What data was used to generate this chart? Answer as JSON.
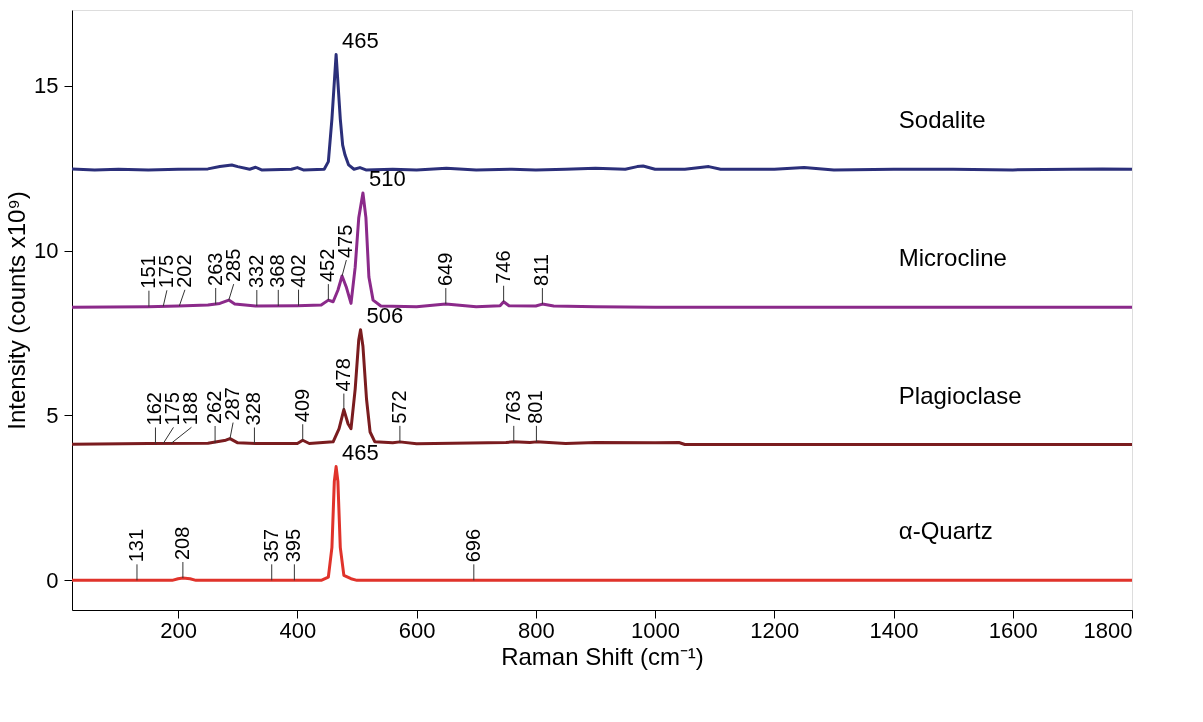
{
  "chart_data": {
    "type": "line",
    "xlabel": "Raman Shift (cm⁻¹)",
    "ylabel": "Intensity (counts x10⁹)",
    "xlim": [
      22,
      1800
    ],
    "ylim": [
      -0.9,
      17.3
    ],
    "xticks": [
      200,
      400,
      600,
      800,
      1000,
      1200,
      1400,
      1600,
      1800
    ],
    "yticks": [
      0,
      5,
      10,
      15
    ],
    "grid": false,
    "legend": false,
    "line_style": "solid",
    "marker": "none",
    "series": [
      {
        "name": "Sodalite",
        "color": "#2b2f7a",
        "x": [
          22,
          60,
          100,
          150,
          200,
          250,
          270,
          290,
          300,
          320,
          330,
          340,
          390,
          400,
          410,
          445,
          452,
          458,
          465,
          472,
          476,
          480,
          486,
          495,
          505,
          515,
          560,
          600,
          650,
          700,
          760,
          800,
          850,
          900,
          950,
          970,
          980,
          1000,
          1050,
          1090,
          1110,
          1200,
          1250,
          1300,
          1400,
          1500,
          1600,
          1700,
          1750,
          1800
        ],
        "values": [
          12.48,
          12.45,
          12.47,
          12.45,
          12.47,
          12.48,
          12.55,
          12.6,
          12.55,
          12.47,
          12.53,
          12.45,
          12.47,
          12.52,
          12.45,
          12.47,
          12.7,
          14.0,
          15.95,
          14.0,
          13.2,
          12.9,
          12.6,
          12.47,
          12.52,
          12.45,
          12.47,
          12.45,
          12.5,
          12.45,
          12.47,
          12.45,
          12.47,
          12.5,
          12.47,
          12.55,
          12.57,
          12.47,
          12.47,
          12.55,
          12.47,
          12.47,
          12.52,
          12.45,
          12.47,
          12.47,
          12.45,
          12.47,
          12.48,
          12.47
        ]
      },
      {
        "name": "Microcline",
        "color": "#8b2a8a",
        "x": [
          22,
          150,
          200,
          250,
          270,
          285,
          295,
          330,
          400,
          440,
          452,
          460,
          468,
          475,
          482,
          490,
          497,
          503,
          510,
          515,
          520,
          527,
          540,
          600,
          649,
          700,
          740,
          746,
          755,
          800,
          811,
          830,
          900,
          1000,
          1200,
          1800
        ],
        "values": [
          8.28,
          8.3,
          8.32,
          8.35,
          8.4,
          8.5,
          8.38,
          8.32,
          8.33,
          8.35,
          8.5,
          8.45,
          8.8,
          9.23,
          8.9,
          8.4,
          9.5,
          11.0,
          11.75,
          11.0,
          9.2,
          8.5,
          8.32,
          8.3,
          8.38,
          8.3,
          8.33,
          8.45,
          8.33,
          8.32,
          8.38,
          8.32,
          8.3,
          8.28,
          8.28,
          8.28
        ]
      },
      {
        "name": "Plagioclase",
        "color": "#7a1c1f",
        "x": [
          22,
          150,
          250,
          280,
          287,
          300,
          330,
          400,
          409,
          420,
          460,
          470,
          478,
          485,
          490,
          497,
          503,
          506,
          510,
          516,
          522,
          530,
          560,
          572,
          600,
          750,
          763,
          790,
          801,
          850,
          900,
          1000,
          1040,
          1050,
          1800
        ],
        "values": [
          4.13,
          4.15,
          4.16,
          4.25,
          4.3,
          4.17,
          4.15,
          4.15,
          4.25,
          4.15,
          4.2,
          4.6,
          5.18,
          4.75,
          4.6,
          5.8,
          7.3,
          7.6,
          7.1,
          5.5,
          4.5,
          4.2,
          4.17,
          4.2,
          4.14,
          4.18,
          4.2,
          4.18,
          4.2,
          4.15,
          4.18,
          4.17,
          4.18,
          4.12,
          4.12
        ]
      },
      {
        "name": "α-Quartz",
        "color": "#e0332b",
        "x": [
          22,
          190,
          200,
          208,
          220,
          230,
          440,
          452,
          458,
          462,
          465,
          468,
          472,
          478,
          490,
          500,
          1800
        ],
        "values": [
          0,
          0,
          0.05,
          0.07,
          0.05,
          0,
          0,
          0.1,
          1.0,
          3.0,
          3.45,
          3.0,
          1.0,
          0.15,
          0.05,
          0,
          0
        ]
      }
    ],
    "annotations": [
      {
        "text": "465",
        "x": 465,
        "y": 15.95
      },
      {
        "text": "151",
        "x": 151,
        "y": 8.3
      },
      {
        "text": "175",
        "x": 175,
        "y": 8.31
      },
      {
        "text": "202",
        "x": 202,
        "y": 8.32
      },
      {
        "text": "263",
        "x": 263,
        "y": 8.37
      },
      {
        "text": "285",
        "x": 285,
        "y": 8.5
      },
      {
        "text": "332",
        "x": 332,
        "y": 8.32
      },
      {
        "text": "368",
        "x": 368,
        "y": 8.32
      },
      {
        "text": "402",
        "x": 402,
        "y": 8.33
      },
      {
        "text": "452",
        "x": 452,
        "y": 8.5
      },
      {
        "text": "475",
        "x": 475,
        "y": 9.23
      },
      {
        "text": "510",
        "x": 510,
        "y": 11.75
      },
      {
        "text": "649",
        "x": 649,
        "y": 8.38
      },
      {
        "text": "746",
        "x": 746,
        "y": 8.45
      },
      {
        "text": "811",
        "x": 811,
        "y": 8.38
      },
      {
        "text": "162",
        "x": 162,
        "y": 4.15
      },
      {
        "text": "175",
        "x": 175,
        "y": 4.15
      },
      {
        "text": "188",
        "x": 188,
        "y": 4.15
      },
      {
        "text": "262",
        "x": 262,
        "y": 4.16
      },
      {
        "text": "287",
        "x": 287,
        "y": 4.3
      },
      {
        "text": "328",
        "x": 328,
        "y": 4.15
      },
      {
        "text": "409",
        "x": 409,
        "y": 4.25
      },
      {
        "text": "478",
        "x": 478,
        "y": 5.18
      },
      {
        "text": "506",
        "x": 506,
        "y": 7.6
      },
      {
        "text": "572",
        "x": 572,
        "y": 4.2
      },
      {
        "text": "763",
        "x": 763,
        "y": 4.2
      },
      {
        "text": "801",
        "x": 801,
        "y": 4.2
      },
      {
        "text": "131",
        "x": 131,
        "y": 0
      },
      {
        "text": "208",
        "x": 208,
        "y": 0.07
      },
      {
        "text": "357",
        "x": 357,
        "y": 0
      },
      {
        "text": "395",
        "x": 395,
        "y": 0
      },
      {
        "text": "465",
        "x": 465,
        "y": 3.45
      },
      {
        "text": "696",
        "x": 696,
        "y": 0
      }
    ]
  }
}
